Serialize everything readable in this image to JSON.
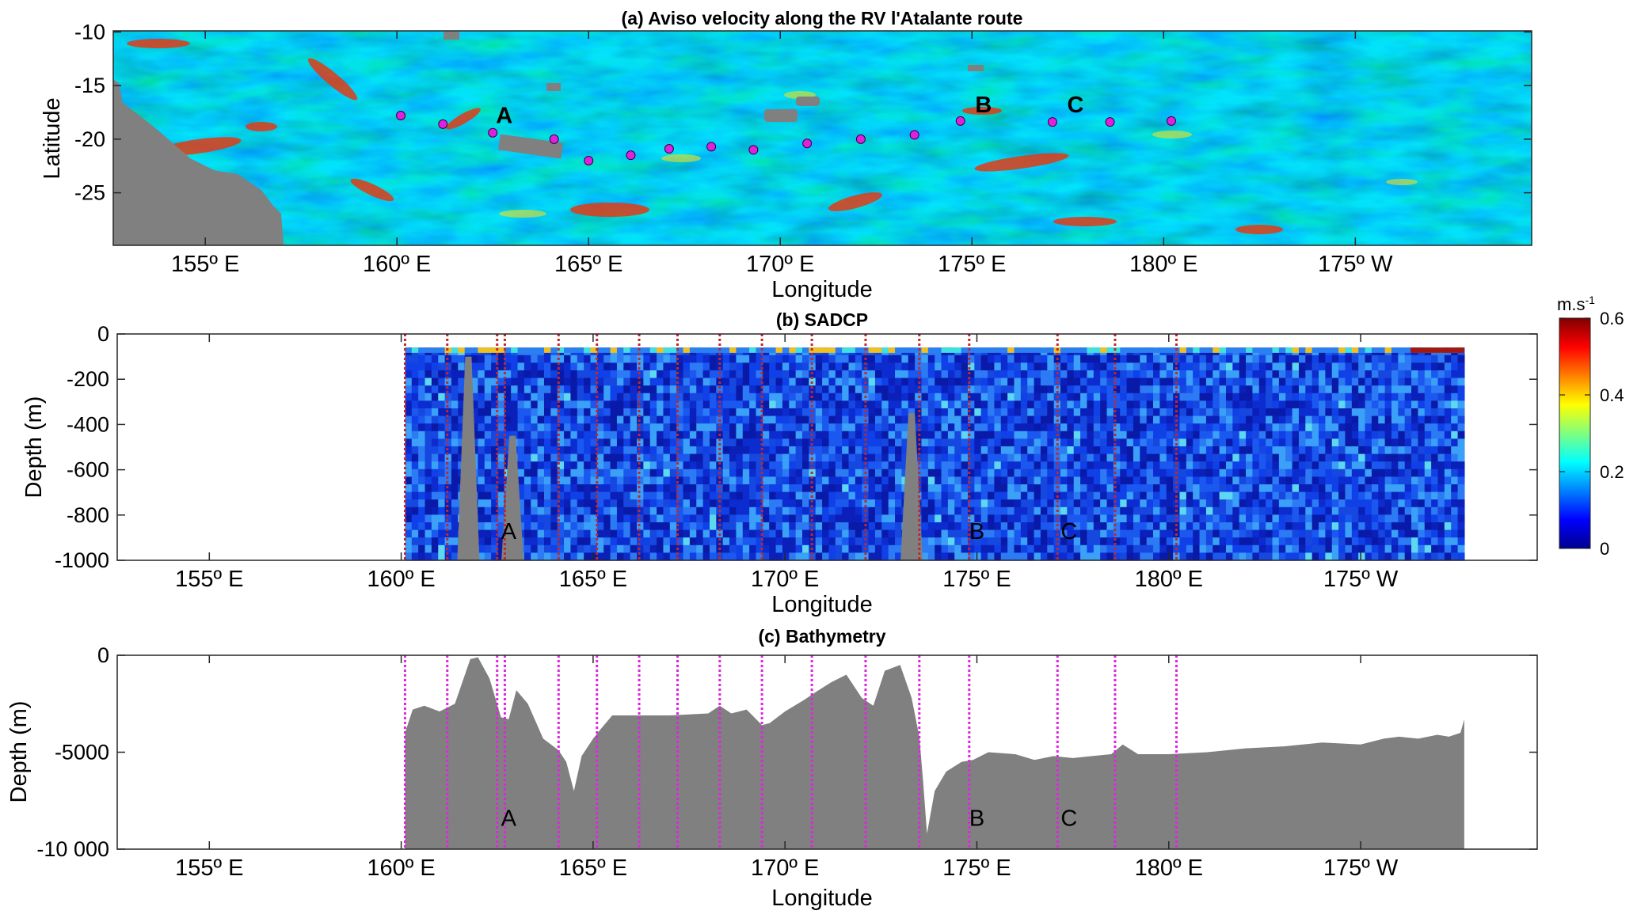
{
  "chart_data": [
    {
      "type": "heatmap",
      "title": "(a) Aviso velocity along the RV l'Atalante route",
      "xlabel": "Longitude",
      "ylabel": "Latitude",
      "xlim": [
        152.6,
        189.6
      ],
      "ylim": [
        -29.9,
        -9.9
      ],
      "x_ticks": [
        {
          "value": 155,
          "label": "155º E"
        },
        {
          "value": 160,
          "label": "160º E"
        },
        {
          "value": 165,
          "label": "165º E"
        },
        {
          "value": 170,
          "label": "170º E"
        },
        {
          "value": 175,
          "label": "175º  E"
        },
        {
          "value": 180,
          "label": "180º  E"
        },
        {
          "value": 185,
          "label": "175º  W"
        }
      ],
      "y_ticks": [
        {
          "value": -10,
          "label": "-10"
        },
        {
          "value": -15,
          "label": "-15"
        },
        {
          "value": -20,
          "label": "-20"
        },
        {
          "value": -25,
          "label": "-25"
        }
      ],
      "stations": [
        {
          "lon": 160.1,
          "lat": -17.8
        },
        {
          "lon": 161.2,
          "lat": -18.6
        },
        {
          "lon": 162.5,
          "lat": -19.4
        },
        {
          "lon": 164.1,
          "lat": -20.0
        },
        {
          "lon": 165.0,
          "lat": -22.0
        },
        {
          "lon": 166.1,
          "lat": -21.5
        },
        {
          "lon": 167.1,
          "lat": -20.9
        },
        {
          "lon": 168.2,
          "lat": -20.7
        },
        {
          "lon": 169.3,
          "lat": -21.0
        },
        {
          "lon": 170.7,
          "lat": -20.4
        },
        {
          "lon": 172.1,
          "lat": -20.0
        },
        {
          "lon": 173.5,
          "lat": -19.6
        },
        {
          "lon": 174.7,
          "lat": -18.3
        },
        {
          "lon": 177.1,
          "lat": -18.4
        },
        {
          "lon": 178.6,
          "lat": -18.4
        },
        {
          "lon": 180.2,
          "lat": -18.3
        }
      ],
      "annotations": [
        {
          "text": "A",
          "lon": 162.8,
          "lat": -18.5
        },
        {
          "text": "B",
          "lon": 175.3,
          "lat": -17.5
        },
        {
          "text": "C",
          "lon": 177.7,
          "lat": -17.5
        }
      ],
      "land_color": "#808080"
    },
    {
      "type": "heatmap",
      "title": "(b) SADCP",
      "xlabel": "Longitude",
      "ylabel": "Depth (m)",
      "xlim": [
        152.6,
        189.6
      ],
      "ylim": [
        -1000,
        0
      ],
      "data_xrange": [
        160.1,
        187.7
      ],
      "data_top_depth": -60,
      "x_ticks": [
        {
          "value": 155,
          "label": "155º E"
        },
        {
          "value": 160,
          "label": "160º E"
        },
        {
          "value": 165,
          "label": "165º E"
        },
        {
          "value": 170,
          "label": "170º E"
        },
        {
          "value": 175,
          "label": "175º  E"
        },
        {
          "value": 180,
          "label": "180º  E"
        },
        {
          "value": 185,
          "label": "175º  W"
        }
      ],
      "y_ticks": [
        {
          "value": 0,
          "label": "0"
        },
        {
          "value": -200,
          "label": "-200"
        },
        {
          "value": -400,
          "label": "-400"
        },
        {
          "value": -600,
          "label": "-600"
        },
        {
          "value": -800,
          "label": "-800"
        },
        {
          "value": -1000,
          "label": "-1000"
        }
      ],
      "station_lines": [
        160.1,
        161.2,
        162.5,
        162.7,
        164.1,
        165.1,
        166.2,
        167.2,
        168.3,
        169.4,
        170.7,
        172.1,
        173.5,
        174.8,
        177.1,
        178.6,
        180.2
      ],
      "line_color": "#c1272d",
      "annotations": [
        {
          "text": "A",
          "lon": 162.8,
          "depth": -800
        },
        {
          "text": "B",
          "lon": 175.0,
          "depth": -800
        },
        {
          "text": "C",
          "lon": 177.4,
          "depth": -800
        }
      ],
      "colorbar": {
        "unit_label": "m.s",
        "unit_exponent": "-1",
        "range": [
          0,
          0.6
        ],
        "ticks": [
          {
            "value": 0,
            "label": "0"
          },
          {
            "value": 0.2,
            "label": "0.2"
          },
          {
            "value": 0.4,
            "label": "0.4"
          },
          {
            "value": 0.6,
            "label": "0.6"
          }
        ]
      }
    },
    {
      "type": "area",
      "title": "(c) Bathymetry",
      "xlabel": "Longitude",
      "ylabel": "Depth (m)",
      "xlim": [
        152.6,
        189.6
      ],
      "ylim": [
        -10000,
        0
      ],
      "x_ticks": [
        {
          "value": 155,
          "label": "155º E"
        },
        {
          "value": 160,
          "label": "160º E"
        },
        {
          "value": 165,
          "label": "165º E"
        },
        {
          "value": 170,
          "label": "170º E"
        },
        {
          "value": 175,
          "label": "175º  E"
        },
        {
          "value": 180,
          "label": "180º  E"
        },
        {
          "value": 185,
          "label": "175º  W"
        }
      ],
      "y_ticks": [
        {
          "value": 0,
          "label": "0"
        },
        {
          "value": -5000,
          "label": "-5000"
        },
        {
          "value": -10000,
          "label": "-10 000"
        }
      ],
      "x": [
        160.1,
        160.3,
        160.6,
        161.0,
        161.4,
        161.8,
        162.0,
        162.3,
        162.6,
        162.8,
        163.0,
        163.3,
        163.7,
        164.1,
        164.3,
        164.5,
        164.7,
        165.0,
        165.2,
        165.5,
        166.0,
        167.0,
        168.0,
        168.3,
        168.6,
        169.0,
        169.4,
        169.6,
        170.0,
        170.5,
        170.8,
        171.2,
        171.6,
        172.0,
        172.3,
        172.6,
        173.0,
        173.3,
        173.5,
        173.6,
        173.7,
        173.9,
        174.2,
        174.6,
        174.9,
        175.3,
        176.0,
        176.5,
        177.0,
        177.5,
        178.0,
        178.5,
        178.8,
        179.2,
        180.0,
        181.0,
        182.0,
        183.0,
        184.0,
        185.0,
        185.6,
        186.0,
        186.5,
        187.0,
        187.3,
        187.6,
        187.7
      ],
      "values": [
        -4000,
        -2800,
        -2600,
        -2900,
        -2500,
        -200,
        -100,
        -1200,
        -3200,
        -3300,
        -1800,
        -2500,
        -4300,
        -4900,
        -5500,
        -7000,
        -5200,
        -4300,
        -3800,
        -3100,
        -3100,
        -3100,
        -3000,
        -2600,
        -3000,
        -2800,
        -3600,
        -3500,
        -2900,
        -2300,
        -1900,
        -1400,
        -1000,
        -2200,
        -2600,
        -800,
        -500,
        -2200,
        -4200,
        -6500,
        -9200,
        -7000,
        -6000,
        -5500,
        -5400,
        -5000,
        -5100,
        -5400,
        -5200,
        -5300,
        -5200,
        -5100,
        -4600,
        -5100,
        -5100,
        -5000,
        -4800,
        -4700,
        -4500,
        -4600,
        -4300,
        -4200,
        -4300,
        -4100,
        -4200,
        -4000,
        -3300
      ],
      "fill_color": "#808080",
      "station_lines": [
        160.1,
        161.2,
        162.5,
        162.7,
        164.1,
        165.1,
        166.2,
        167.2,
        168.3,
        169.4,
        170.7,
        172.1,
        173.5,
        174.8,
        177.1,
        178.6,
        180.2
      ],
      "line_color": "#e024e0",
      "annotations": [
        {
          "text": "A",
          "lon": 162.8,
          "depth": -8300
        },
        {
          "text": "B",
          "lon": 175.0,
          "depth": -8300
        },
        {
          "text": "C",
          "lon": 177.4,
          "depth": -8300
        }
      ]
    }
  ]
}
